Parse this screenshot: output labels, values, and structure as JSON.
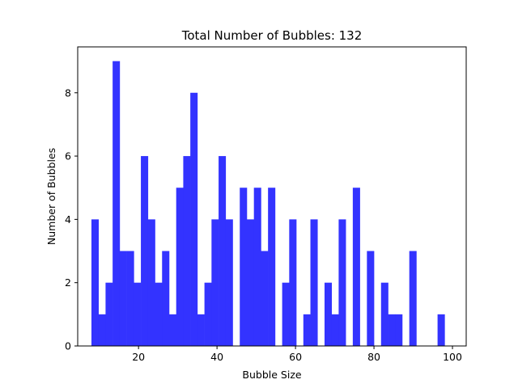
{
  "chart_data": {
    "type": "bar",
    "title": "Total Number of Bubbles: 132",
    "xlabel": "Bubble Size",
    "ylabel": "Number of Bubbles",
    "xlim": [
      4.5,
      103.5
    ],
    "ylim": [
      0,
      9.45
    ],
    "bin_width": 1.8,
    "bar_color": "#3333ff",
    "x_ticks": [
      20,
      40,
      60,
      80,
      100
    ],
    "y_ticks": [
      0,
      2,
      4,
      6,
      8
    ],
    "bins_start": [
      8.0,
      9.8,
      11.6,
      13.4,
      15.2,
      17.0,
      18.8,
      20.6,
      22.4,
      24.2,
      26.0,
      27.8,
      29.6,
      31.4,
      33.2,
      35.0,
      36.8,
      38.6,
      40.4,
      42.2,
      44.0,
      45.8,
      47.6,
      49.4,
      51.2,
      53.0,
      54.8,
      56.6,
      58.4,
      60.2,
      62.0,
      63.8,
      65.6,
      67.4,
      69.2,
      71.0,
      72.8,
      74.6,
      76.4,
      78.2,
      80.0,
      81.8,
      83.6,
      85.4,
      87.2,
      89.0,
      90.8,
      92.6,
      94.4,
      96.2,
      98.0
    ],
    "values": [
      4,
      1,
      2,
      9,
      3,
      3,
      2,
      6,
      4,
      2,
      3,
      1,
      5,
      6,
      8,
      1,
      2,
      4,
      6,
      4,
      0,
      5,
      4,
      5,
      3,
      5,
      0,
      2,
      4,
      0,
      1,
      4,
      0,
      2,
      1,
      4,
      0,
      5,
      0,
      3,
      0,
      2,
      1,
      1,
      0,
      3,
      0,
      0,
      0,
      1,
      0
    ],
    "grid": false,
    "legend": "none"
  }
}
